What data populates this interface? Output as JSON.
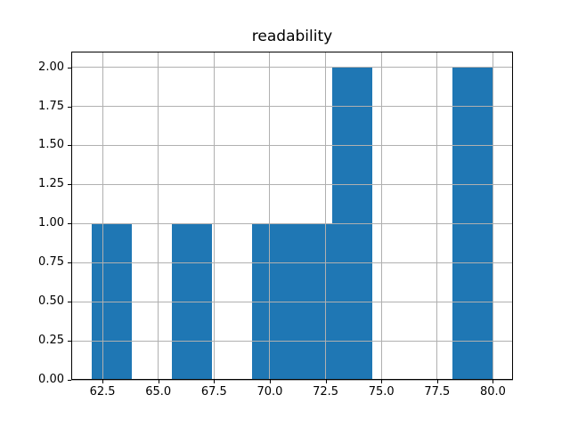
{
  "chart_data": {
    "type": "histogram",
    "title": "readability",
    "xlabel": "",
    "ylabel": "",
    "bin_edges": [
      62.0,
      63.8,
      65.6,
      67.4,
      69.2,
      71.0,
      72.8,
      74.6,
      76.4,
      78.2,
      80.0
    ],
    "counts": [
      1,
      0,
      1,
      0,
      1,
      1,
      2,
      0,
      0,
      2
    ],
    "xlim": [
      61.1,
      80.9
    ],
    "ylim": [
      0,
      2.1
    ],
    "x_ticks": [
      62.5,
      65.0,
      67.5,
      70.0,
      72.5,
      75.0,
      77.5,
      80.0
    ],
    "x_tick_labels": [
      "62.5",
      "65.0",
      "67.5",
      "70.0",
      "72.5",
      "75.0",
      "77.5",
      "80.0"
    ],
    "y_ticks": [
      0,
      0.25,
      0.5,
      0.75,
      1.0,
      1.25,
      1.5,
      1.75,
      2.0
    ],
    "y_tick_labels": [
      "0.00",
      "0.25",
      "0.50",
      "0.75",
      "1.00",
      "1.25",
      "1.50",
      "1.75",
      "2.00"
    ],
    "grid": true,
    "grid_position": "above-bars",
    "legend": false,
    "colors": {
      "bar": "#1f77b4",
      "grid": "#b0b0b0",
      "spine": "#000000",
      "text": "#000000",
      "background": "#ffffff"
    }
  }
}
